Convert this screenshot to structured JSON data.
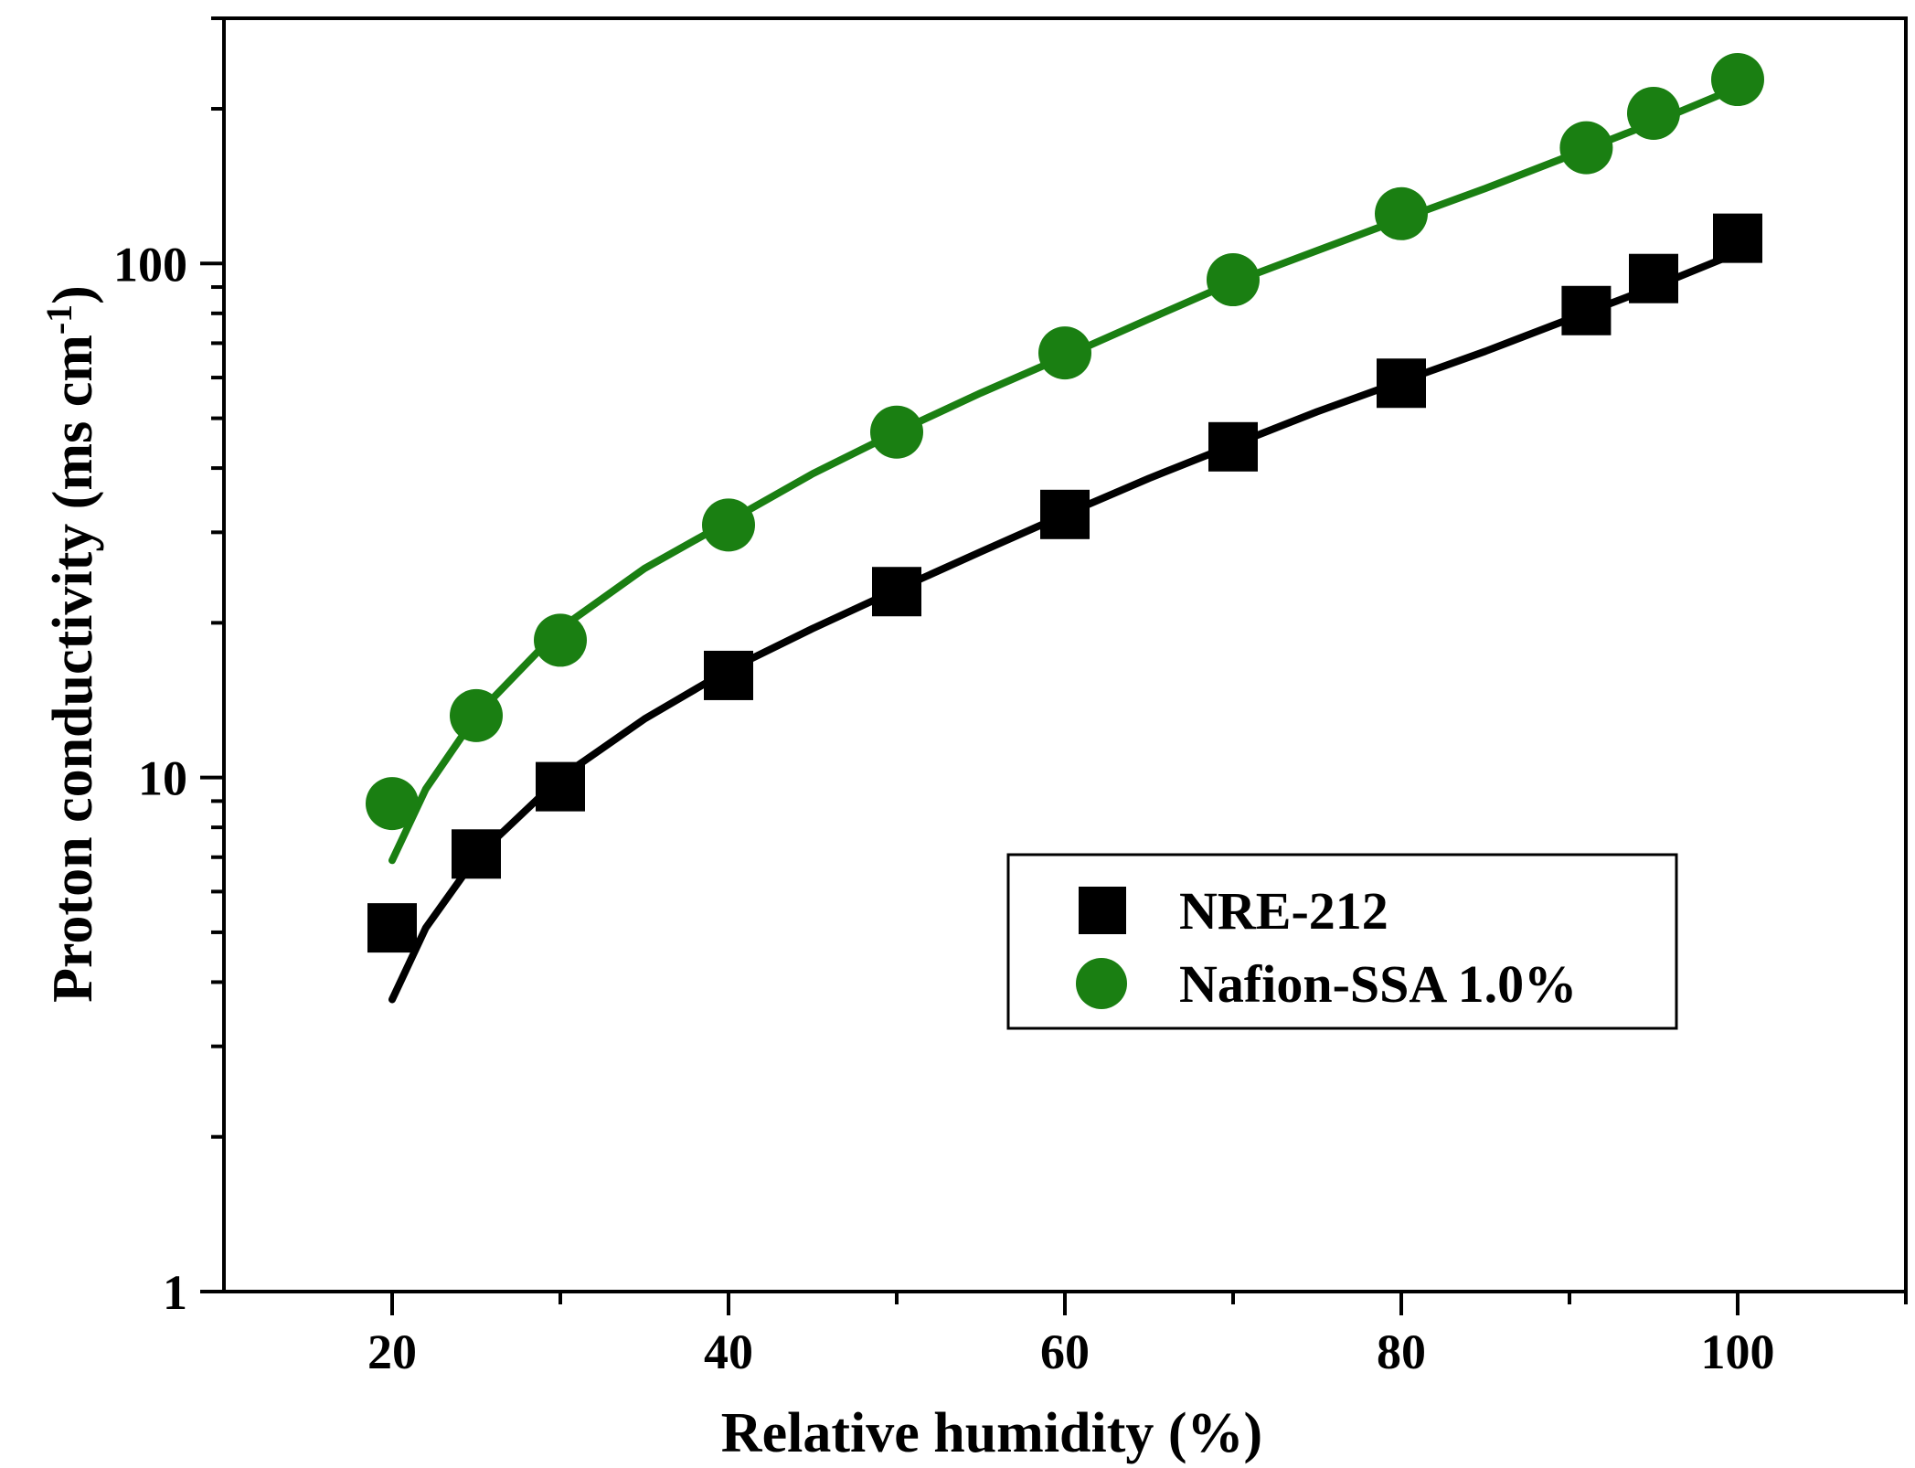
{
  "chart_data": {
    "type": "scatter",
    "title": "",
    "xlabel": "Relative humidity (%)",
    "ylabel": "Proton conductivity (ms cm",
    "ylabel_superscript": "-1",
    "ylabel_close": ")",
    "xlim": [
      10,
      110
    ],
    "ylim": [
      1,
      300
    ],
    "yscale": "log",
    "x_ticks": [
      20,
      40,
      60,
      80,
      100
    ],
    "x_tick_labels": [
      "20",
      "40",
      "60",
      "80",
      "100"
    ],
    "y_ticks": [
      1,
      10,
      100
    ],
    "y_tick_labels": [
      "1",
      "10",
      "100"
    ],
    "legend_position": "lower-right",
    "series": [
      {
        "name": "NRE-212",
        "marker": "square",
        "color": "#000000",
        "x": [
          20,
          25,
          30,
          40,
          50,
          60,
          70,
          80,
          91,
          95,
          100
        ],
        "y": [
          5.1,
          7.1,
          9.6,
          15.8,
          23.0,
          32.5,
          44.0,
          58.5,
          81.0,
          93.5,
          112.0
        ],
        "fit_x": [
          20,
          22,
          25,
          30,
          35,
          40,
          45,
          50,
          55,
          60,
          65,
          70,
          75,
          80,
          85,
          90,
          95,
          100
        ],
        "fit_y": [
          3.7,
          5.1,
          7.0,
          10.0,
          13.0,
          16.2,
          19.5,
          23.2,
          27.5,
          32.5,
          38.2,
          44.4,
          51.5,
          59.0,
          67.5,
          78.0,
          90.0,
          105.0
        ]
      },
      {
        "name": "Nafion-SSA 1.0%",
        "marker": "circle",
        "color": "#1a7f12",
        "x": [
          20,
          25,
          30,
          40,
          50,
          60,
          70,
          80,
          91,
          95,
          100
        ],
        "y": [
          8.9,
          13.2,
          18.5,
          31.0,
          47.0,
          67.0,
          93.0,
          125.0,
          168.0,
          196.0,
          228.0
        ],
        "fit_x": [
          20,
          22,
          25,
          30,
          35,
          40,
          45,
          50,
          55,
          60,
          65,
          70,
          75,
          80,
          85,
          90,
          95,
          100
        ],
        "fit_y": [
          6.9,
          9.5,
          13.2,
          19.5,
          25.5,
          31.5,
          39.0,
          47.0,
          56.0,
          66.0,
          78.0,
          92.0,
          106.0,
          122.0,
          140.0,
          162.0,
          188.0,
          220.0
        ]
      }
    ]
  }
}
